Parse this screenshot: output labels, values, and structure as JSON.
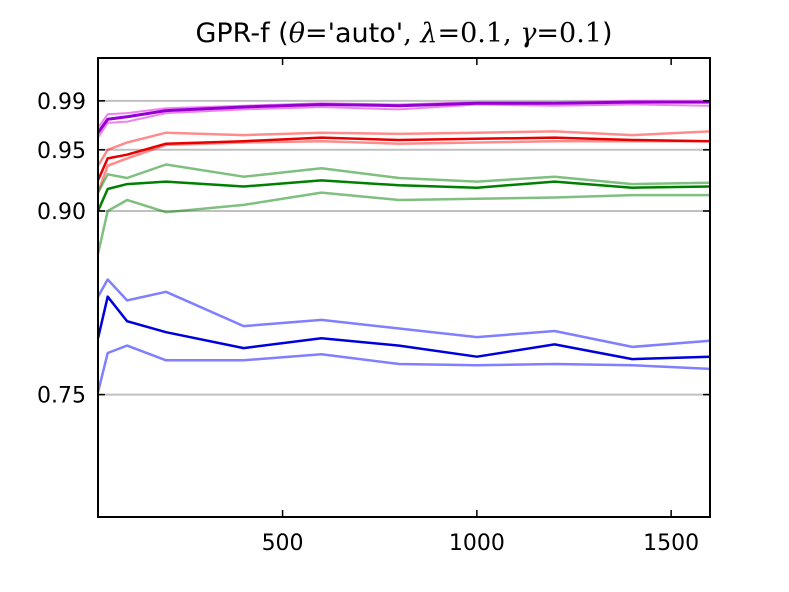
{
  "chart_data": {
    "type": "line",
    "title": {
      "prefix": "GPR-f (",
      "theta_symbol": "θ",
      "equals": "=",
      "theta_value": "'auto'",
      "comma": ", ",
      "lambda_symbol": "λ",
      "lambda_value": "0.1",
      "gamma_symbol": "γ",
      "gamma_value": "0.1",
      "suffix": ")"
    },
    "xlabel": "",
    "ylabel": "",
    "xlim": [
      25,
      1600
    ],
    "ylim": [
      0.65,
      1.025
    ],
    "grid_lines_y": [
      0.75,
      0.9,
      0.95,
      0.99
    ],
    "xticks": [
      500,
      1000,
      1500
    ],
    "xtick_labels": [
      "500",
      "1000",
      "1500"
    ],
    "yticks": [
      0.75,
      0.9,
      0.95,
      0.99
    ],
    "ytick_labels": [
      "0.75",
      "0.90",
      "0.95",
      "0.99"
    ],
    "x": [
      25,
      50,
      100,
      200,
      400,
      600,
      800,
      1000,
      1200,
      1400,
      1600
    ],
    "series": [
      {
        "color": "#ee82ee",
        "opacity": 1.0,
        "width": 2,
        "values": [
          0.96,
          0.972,
          0.973,
          0.98,
          0.983,
          0.985,
          0.983,
          0.987,
          0.986,
          0.987,
          0.986
        ]
      },
      {
        "color": "#ee82ee",
        "opacity": 1.0,
        "width": 2,
        "values": [
          0.968,
          0.979,
          0.98,
          0.984,
          0.986,
          0.988,
          0.987,
          0.989,
          0.989,
          0.99,
          0.99
        ]
      },
      {
        "color": "#9400d3",
        "opacity": 1.0,
        "width": 3,
        "values": [
          0.964,
          0.975,
          0.977,
          0.982,
          0.985,
          0.987,
          0.986,
          0.988,
          0.988,
          0.989,
          0.989
        ]
      },
      {
        "color": "#ff0000",
        "opacity": 0.45,
        "width": 2.5,
        "values": [
          0.915,
          0.937,
          0.943,
          0.954,
          0.956,
          0.957,
          0.955,
          0.956,
          0.957,
          0.957,
          0.957
        ]
      },
      {
        "color": "#ff0000",
        "opacity": 0.45,
        "width": 2.5,
        "values": [
          0.937,
          0.95,
          0.956,
          0.964,
          0.962,
          0.964,
          0.963,
          0.964,
          0.965,
          0.962,
          0.965
        ]
      },
      {
        "color": "#e60000",
        "opacity": 1.0,
        "width": 2.5,
        "values": [
          0.925,
          0.943,
          0.946,
          0.955,
          0.957,
          0.96,
          0.958,
          0.959,
          0.96,
          0.958,
          0.957
        ]
      },
      {
        "color": "#008000",
        "opacity": 0.5,
        "width": 2.5,
        "values": [
          0.865,
          0.9,
          0.909,
          0.899,
          0.905,
          0.915,
          0.909,
          0.91,
          0.911,
          0.913,
          0.913
        ]
      },
      {
        "color": "#008000",
        "opacity": 0.5,
        "width": 2.5,
        "values": [
          0.915,
          0.93,
          0.927,
          0.938,
          0.928,
          0.935,
          0.927,
          0.924,
          0.928,
          0.922,
          0.923
        ]
      },
      {
        "color": "#008000",
        "opacity": 1.0,
        "width": 2.5,
        "values": [
          0.9,
          0.918,
          0.922,
          0.924,
          0.92,
          0.925,
          0.921,
          0.919,
          0.924,
          0.919,
          0.92
        ]
      },
      {
        "color": "#0000ff",
        "opacity": 0.5,
        "width": 2.5,
        "values": [
          0.752,
          0.784,
          0.79,
          0.778,
          0.778,
          0.783,
          0.775,
          0.774,
          0.775,
          0.774,
          0.771
        ]
      },
      {
        "color": "#0000ff",
        "opacity": 0.5,
        "width": 2.5,
        "values": [
          0.83,
          0.844,
          0.827,
          0.834,
          0.806,
          0.811,
          0.804,
          0.797,
          0.802,
          0.789,
          0.794
        ]
      },
      {
        "color": "#0000dd",
        "opacity": 1.0,
        "width": 2.5,
        "values": [
          0.796,
          0.83,
          0.81,
          0.801,
          0.788,
          0.796,
          0.79,
          0.781,
          0.791,
          0.779,
          0.781
        ]
      }
    ]
  }
}
